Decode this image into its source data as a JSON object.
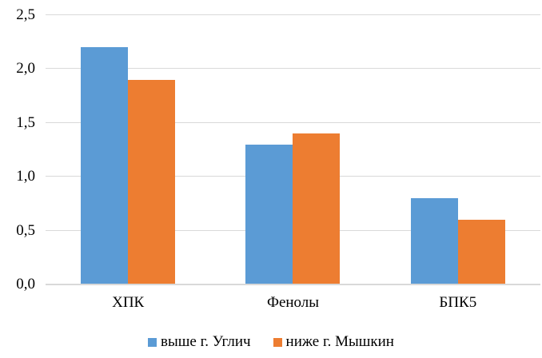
{
  "chart_data": {
    "type": "bar",
    "title": "",
    "xlabel": "",
    "ylabel": "",
    "categories": [
      "ХПК",
      "Фенолы",
      "БПК5"
    ],
    "series": [
      {
        "name": "выше г. Углич",
        "color": "#5B9BD5",
        "values": [
          2.2,
          1.3,
          0.8
        ]
      },
      {
        "name": "ниже г. Мышкин",
        "color": "#ED7D31",
        "values": [
          1.9,
          1.4,
          0.6
        ]
      }
    ],
    "ylim": [
      0,
      2.5
    ],
    "y_ticks": [
      0.0,
      0.5,
      1.0,
      1.5,
      2.0,
      2.5
    ],
    "y_tick_labels": [
      "0,0",
      "0,5",
      "1,0",
      "1,5",
      "2,0",
      "2,5"
    ],
    "grid": true,
    "legend_position": "bottom",
    "colors": {
      "gridline": "#d9d9d9",
      "axis": "#d9d9d9",
      "text": "#000000",
      "background": "#ffffff"
    }
  }
}
